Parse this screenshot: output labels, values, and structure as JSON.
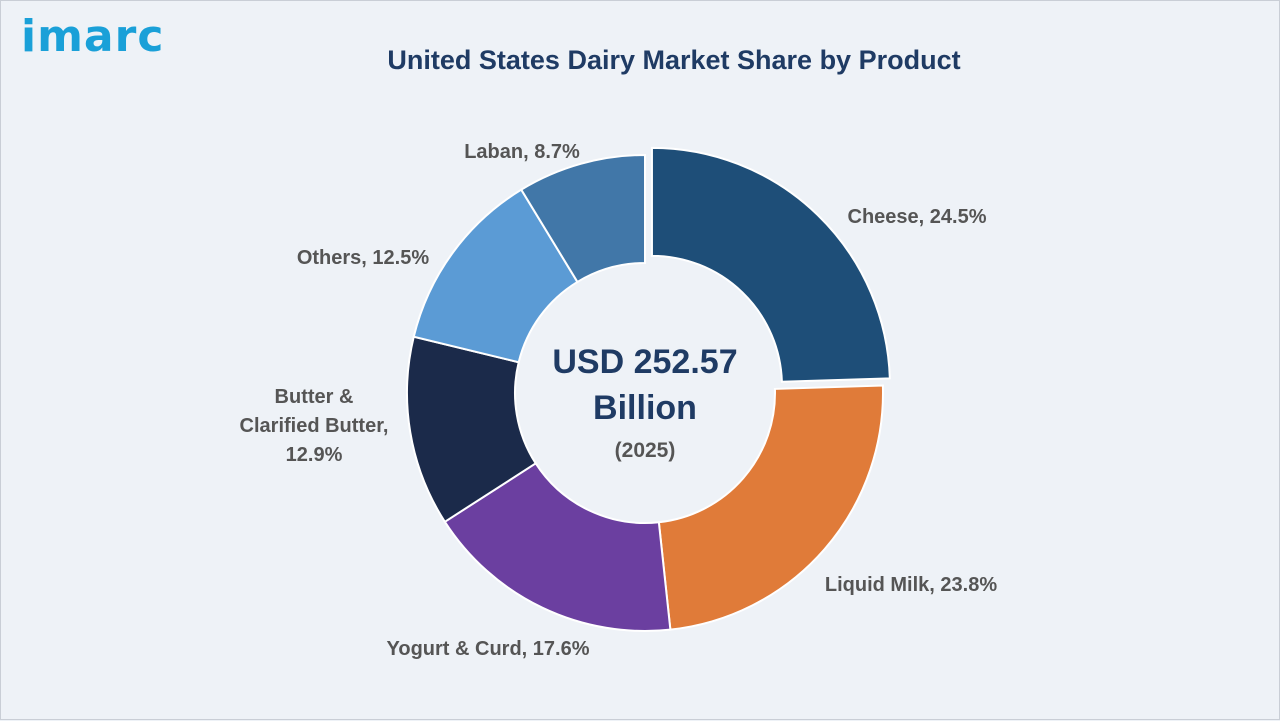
{
  "brand": {
    "logo_text": "imarc"
  },
  "chart_data": {
    "type": "pie",
    "title": "United States Dairy Market Share by Product",
    "center_text": {
      "line1": "USD 252.57",
      "line2": "Billion",
      "line3": "(2025)"
    },
    "slices": [
      {
        "label": "Cheese",
        "value": 24.5,
        "color": "#1e4e78",
        "label_text": "Cheese, 24.5%"
      },
      {
        "label": "Liquid Milk",
        "value": 23.8,
        "color": "#e07b39",
        "label_text": "Liquid Milk, 23.8%"
      },
      {
        "label": "Yogurt & Curd",
        "value": 17.6,
        "color": "#6b3fa0",
        "label_text": "Yogurt & Curd, 17.6%"
      },
      {
        "label": "Butter & Clarified Butter",
        "value": 12.9,
        "color": "#1b2a4a",
        "label_lines": [
          "Butter &",
          "Clarified Butter,",
          "12.9%"
        ]
      },
      {
        "label": "Others",
        "value": 12.5,
        "color": "#5b9bd5",
        "label_text": "Others, 12.5%"
      },
      {
        "label": "Laban",
        "value": 8.7,
        "color": "#4177a8",
        "label_text": "Laban, 8.7%"
      }
    ],
    "legend": "none"
  }
}
